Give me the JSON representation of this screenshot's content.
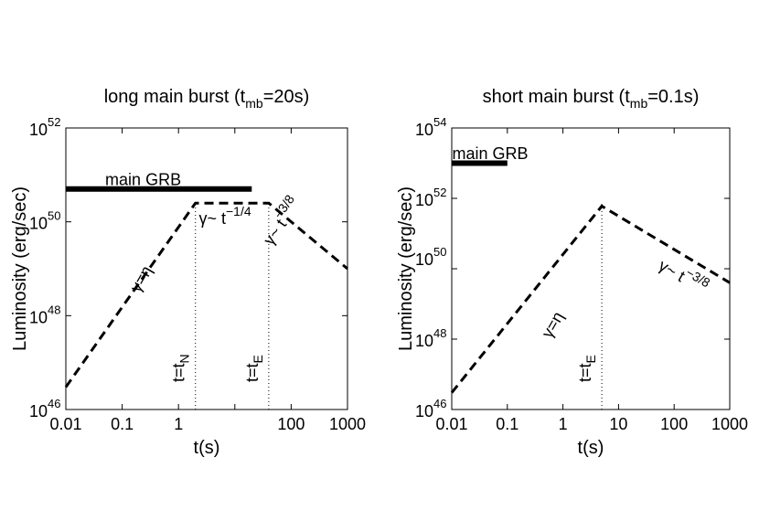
{
  "chart_data": [
    {
      "type": "line",
      "title": "long main burst (t",
      "title_sub": "mb",
      "title_tail": "=20s)",
      "xlabel": "t(s)",
      "ylabel": "Luminosity (erg/sec)",
      "xscale": "log",
      "yscale": "log",
      "xlim": [
        0.01,
        1000
      ],
      "ylim": [
        1e+46,
        1e+52
      ],
      "xticks": [
        0.01,
        0.1,
        1,
        10,
        100,
        1000
      ],
      "xtick_labels": [
        "0.01",
        "0.1",
        "1",
        "",
        "100",
        "1000"
      ],
      "yticks": [
        1e+46,
        1e+48,
        1e+50,
        1e+52
      ],
      "ytick_base": "10",
      "ytick_exps": [
        "46",
        "48",
        "50",
        "52"
      ],
      "series": [
        {
          "name": "main GRB",
          "style": "solid-thick",
          "x": [
            0.01,
            20
          ],
          "y": [
            5e+50,
            5e+50
          ]
        },
        {
          "style": "dashed",
          "x": [
            0.01,
            2,
            40,
            1000
          ],
          "y": [
            3e+46,
            2.5e+50,
            2.5e+50,
            1e+49
          ]
        }
      ],
      "vlines": [
        {
          "x": 2,
          "label": "t=t",
          "label_sub": "N"
        },
        {
          "x": 40,
          "label": "t=t",
          "label_sub": "E"
        }
      ],
      "annotations": [
        {
          "text": "main GRB",
          "x": 0.05,
          "y": 6e+50
        },
        {
          "text": "γ=η",
          "x": 0.2,
          "y": 3e+48,
          "rotation": -60
        },
        {
          "text": "γ~ t",
          "sup": "−1/4",
          "x": 2.3,
          "y": 9e+49
        },
        {
          "text": "γ~ t",
          "sup": "−3/8",
          "x": 45,
          "y": 3e+49,
          "rotation": -55
        }
      ]
    },
    {
      "type": "line",
      "title": "short main burst (t",
      "title_sub": "mb",
      "title_tail": "=0.1s)",
      "xlabel": "t(s)",
      "ylabel": "Luminosity (erg/sec)",
      "xscale": "log",
      "yscale": "log",
      "xlim": [
        0.01,
        1000
      ],
      "ylim": [
        1e+46,
        1e+54
      ],
      "xticks": [
        0.01,
        0.1,
        1,
        10,
        100,
        1000
      ],
      "xtick_labels": [
        "0.01",
        "0.1",
        "1",
        "10",
        "100",
        "1000"
      ],
      "yticks": [
        1e+46,
        1e+48,
        1e+50,
        1e+52,
        1e+54
      ],
      "ytick_base": "10",
      "ytick_exps": [
        "46",
        "48",
        "",
        "52",
        "54"
      ],
      "ytick_float": [
        {
          "exp": "50",
          "y": 1e+50,
          "offset": -12
        }
      ],
      "series": [
        {
          "name": "main GRB",
          "style": "solid-thick",
          "x": [
            0.01,
            0.1
          ],
          "y": [
            1e+53,
            1e+53
          ]
        },
        {
          "style": "dashed",
          "x": [
            0.01,
            5,
            1000
          ],
          "y": [
            3e+46,
            6e+51,
            4e+49
          ]
        }
      ],
      "vlines": [
        {
          "x": 5,
          "label": "t=t",
          "label_sub": "E"
        }
      ],
      "annotations": [
        {
          "text": "main GRB",
          "x": 0.0102,
          "y": 1.3e+53
        },
        {
          "text": "γ=η",
          "x": 0.6,
          "y": 1e+48,
          "rotation": -60
        },
        {
          "text": "γ~ t",
          "sup": "−3/8",
          "x": 50,
          "y": 1e+50,
          "rotation": 30
        }
      ]
    }
  ]
}
